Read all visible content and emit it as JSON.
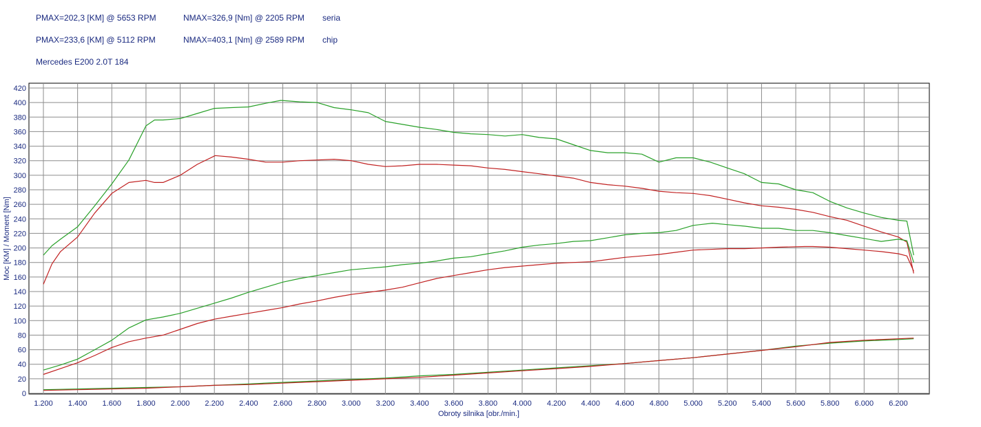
{
  "header": {
    "row1": {
      "pmax": "PMAX=202,3 [KM] @ 5653 RPM",
      "nmax": "NMAX=326,9 [Nm] @ 2205 RPM",
      "label": "seria"
    },
    "row2": {
      "pmax": "PMAX=233,6 [KM] @ 5112 RPM",
      "nmax": "NMAX=403,1 [Nm] @ 2589 RPM",
      "label": "chip"
    },
    "car": "Mercedes E200 2.0T 184"
  },
  "chart_data": {
    "type": "line",
    "xlabel": "Obroty silnika [obr./min.]",
    "ylabel": "Moc [KM] / Moment [Nm]",
    "xlim": [
      1170,
      1350
    ],
    "xlim_note": "",
    "x_range": [
      1170,
      6350
    ],
    "y_range": [
      0,
      425
    ],
    "grid": true,
    "x_ticks": [
      "1.200",
      "1.400",
      "1.600",
      "1.800",
      "2.000",
      "2.200",
      "2.400",
      "2.600",
      "2.800",
      "3.000",
      "3.200",
      "3.400",
      "3.600",
      "3.800",
      "4.000",
      "4.200",
      "4.400",
      "4.600",
      "4.800",
      "5.000",
      "5.200",
      "5.400",
      "5.600",
      "5.800",
      "6.000",
      "6.200"
    ],
    "x_tick_values": [
      1200,
      1400,
      1600,
      1800,
      2000,
      2200,
      2400,
      2600,
      2800,
      3000,
      3200,
      3400,
      3600,
      3800,
      4000,
      4200,
      4400,
      4600,
      4800,
      5000,
      5200,
      5400,
      5600,
      5800,
      6000,
      6200
    ],
    "y_ticks": [
      0,
      20,
      40,
      60,
      80,
      100,
      120,
      140,
      160,
      180,
      200,
      220,
      240,
      260,
      280,
      300,
      320,
      340,
      360,
      380,
      400,
      420
    ],
    "series": [
      {
        "color": "#28a028",
        "x": [
          1200,
          1250,
          1300,
          1400,
          1500,
          1600,
          1700,
          1800,
          1850,
          1900,
          2000,
          2100,
          2200,
          2300,
          2400,
          2500,
          2589,
          2700,
          2800,
          2900,
          3000,
          3100,
          3200,
          3300,
          3400,
          3500,
          3600,
          3700,
          3800,
          3900,
          4000,
          4100,
          4200,
          4300,
          4400,
          4500,
          4600,
          4700,
          4800,
          4900,
          5000,
          5100,
          5200,
          5300,
          5400,
          5500,
          5600,
          5700,
          5800,
          5900,
          6000,
          6100,
          6200,
          6250,
          6290
        ],
        "values": [
          190,
          203,
          212,
          229,
          258,
          288,
          321,
          368,
          376,
          376,
          378,
          385,
          392,
          393,
          394,
          399,
          403,
          401,
          400,
          393,
          390,
          386,
          374,
          370,
          366,
          363,
          359,
          357,
          356,
          354,
          356,
          352,
          350,
          342,
          334,
          331,
          331,
          329,
          318,
          324,
          324,
          318,
          310,
          302,
          290,
          288,
          280,
          276,
          264,
          255,
          248,
          242,
          238,
          237,
          190
        ]
      },
      {
        "color": "#c02020",
        "x": [
          1200,
          1250,
          1300,
          1400,
          1500,
          1600,
          1700,
          1800,
          1850,
          1900,
          2000,
          2100,
          2205,
          2300,
          2400,
          2500,
          2600,
          2700,
          2800,
          2900,
          3000,
          3100,
          3200,
          3300,
          3400,
          3500,
          3600,
          3700,
          3800,
          3900,
          4000,
          4100,
          4200,
          4300,
          4400,
          4500,
          4600,
          4700,
          4800,
          4900,
          5000,
          5100,
          5200,
          5300,
          5400,
          5500,
          5600,
          5700,
          5800,
          5900,
          6000,
          6100,
          6200,
          6250,
          6290
        ],
        "values": [
          150,
          178,
          195,
          215,
          248,
          275,
          290,
          293,
          290,
          290,
          300,
          315,
          327,
          325,
          322,
          318,
          318,
          320,
          321,
          322,
          320,
          315,
          312,
          313,
          315,
          315,
          314,
          313,
          310,
          308,
          305,
          302,
          299,
          296,
          290,
          287,
          285,
          282,
          278,
          276,
          275,
          272,
          267,
          262,
          258,
          256,
          253,
          249,
          243,
          238,
          230,
          222,
          215,
          208,
          165
        ]
      },
      {
        "color": "#28a028",
        "x": [
          1200,
          1300,
          1400,
          1500,
          1600,
          1700,
          1800,
          1900,
          2000,
          2100,
          2200,
          2300,
          2400,
          2500,
          2600,
          2700,
          2800,
          2900,
          3000,
          3100,
          3200,
          3300,
          3400,
          3500,
          3600,
          3700,
          3800,
          3900,
          4000,
          4100,
          4200,
          4300,
          4400,
          4500,
          4600,
          4700,
          4800,
          4900,
          5000,
          5112,
          5200,
          5300,
          5400,
          5500,
          5600,
          5700,
          5800,
          5900,
          6000,
          6100,
          6200,
          6250,
          6290
        ],
        "values": [
          32,
          39,
          47,
          60,
          73,
          90,
          101,
          105,
          110,
          117,
          124,
          131,
          139,
          146,
          153,
          158,
          162,
          166,
          170,
          172,
          174,
          177,
          179,
          182,
          186,
          188,
          192,
          196,
          201,
          204,
          206,
          209,
          210,
          214,
          218,
          220,
          221,
          224,
          231,
          234,
          232,
          230,
          227,
          227,
          224,
          224,
          221,
          217,
          213,
          209,
          212,
          210,
          180
        ]
      },
      {
        "color": "#c02020",
        "x": [
          1200,
          1300,
          1400,
          1500,
          1600,
          1700,
          1800,
          1900,
          2000,
          2100,
          2200,
          2300,
          2400,
          2500,
          2600,
          2700,
          2800,
          2900,
          3000,
          3100,
          3200,
          3300,
          3400,
          3500,
          3600,
          3700,
          3800,
          3900,
          4000,
          4100,
          4200,
          4300,
          4400,
          4500,
          4600,
          4700,
          4800,
          4900,
          5000,
          5100,
          5200,
          5300,
          5400,
          5500,
          5653,
          5700,
          5800,
          5900,
          6000,
          6100,
          6200,
          6250,
          6290
        ],
        "values": [
          26,
          34,
          42,
          52,
          63,
          71,
          76,
          80,
          88,
          96,
          102,
          106,
          110,
          114,
          118,
          123,
          127,
          132,
          136,
          139,
          142,
          146,
          152,
          158,
          162,
          166,
          170,
          173,
          175,
          177,
          179,
          180,
          181,
          184,
          187,
          189,
          191,
          194,
          197,
          198,
          199,
          199,
          200,
          201,
          202,
          202,
          201,
          199,
          197,
          195,
          192,
          189,
          168
        ]
      },
      {
        "color": "#28a028",
        "x": [
          1200,
          1400,
          1600,
          1800,
          2000,
          2200,
          2400,
          2600,
          2800,
          3000,
          3200,
          3400,
          3600,
          3800,
          4000,
          4200,
          4400,
          4600,
          4800,
          5000,
          5200,
          5400,
          5600,
          5800,
          6000,
          6200,
          6290
        ],
        "values": [
          5,
          6,
          7,
          8,
          9,
          11,
          13,
          15,
          17,
          19,
          21,
          24,
          26,
          29,
          32,
          35,
          38,
          41,
          45,
          49,
          54,
          59,
          65,
          69,
          72,
          74,
          75
        ]
      },
      {
        "color": "#c02020",
        "x": [
          1200,
          1400,
          1600,
          1800,
          2000,
          2200,
          2400,
          2600,
          2800,
          3000,
          3200,
          3400,
          3600,
          3800,
          4000,
          4200,
          4400,
          4600,
          4800,
          5000,
          5200,
          5400,
          5600,
          5800,
          6000,
          6200,
          6290
        ],
        "values": [
          4,
          5,
          6,
          7,
          9,
          11,
          12,
          14,
          16,
          18,
          20,
          22,
          25,
          28,
          31,
          34,
          37,
          41,
          45,
          49,
          54,
          59,
          64,
          70,
          73,
          75,
          76
        ]
      }
    ]
  }
}
